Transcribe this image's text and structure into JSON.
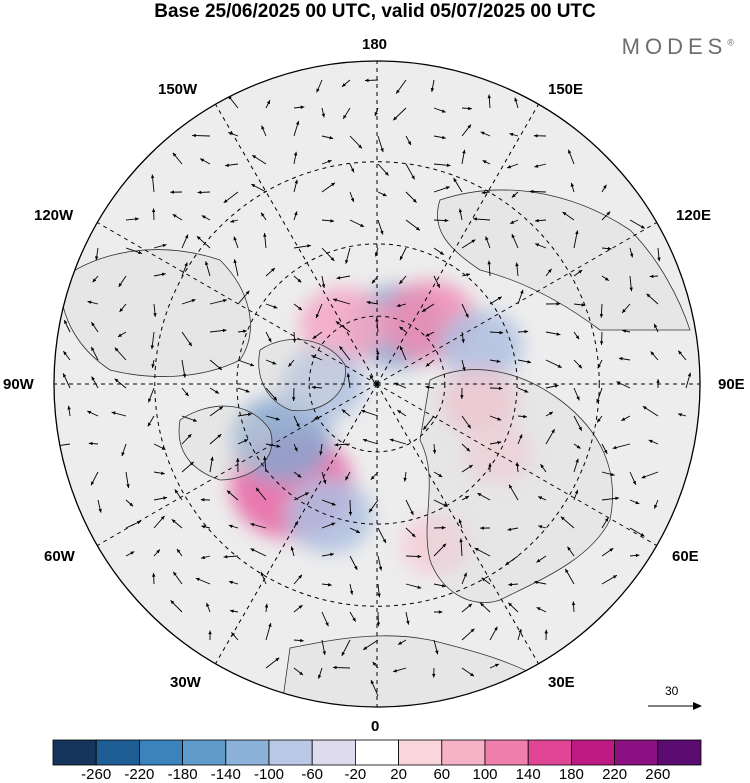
{
  "header": {
    "title": "Base 25/06/2025 00 UTC, valid 05/07/2025 00 UTC",
    "brand": "MODES",
    "brand_mark": "®"
  },
  "map": {
    "projection": "north polar stereographic",
    "longitude_labels": {
      "top": "180",
      "bottom": "0",
      "left": "90W",
      "right": "90E",
      "upper_left_1": "150W",
      "upper_left_2": "120W",
      "upper_right_1": "150E",
      "upper_right_2": "120E",
      "lower_left_1": "60W",
      "lower_left_2": "30W",
      "lower_right_1": "60E",
      "lower_right_2": "30E"
    },
    "reference_vector_label": "30",
    "anomaly_centers": [
      {
        "lon": -40,
        "lat": 52,
        "value": 220,
        "color": "#e864a4"
      },
      {
        "lon": -60,
        "lat": 58,
        "value": -150,
        "color": "#8aa7cf"
      },
      {
        "lon": -20,
        "lat": 50,
        "value": -110,
        "color": "#aebfe0"
      },
      {
        "lon": 160,
        "lat": 72,
        "value": -140,
        "color": "#8aa7cf"
      },
      {
        "lon": -150,
        "lat": 70,
        "value": 110,
        "color": "#f4a6c4"
      },
      {
        "lon": 140,
        "lat": 66,
        "value": 130,
        "color": "#f08cb4"
      },
      {
        "lon": 110,
        "lat": 58,
        "value": -100,
        "color": "#aebfe0"
      },
      {
        "lon": 80,
        "lat": 60,
        "value": 80,
        "color": "#f6bccd"
      },
      {
        "lon": -90,
        "lat": 74,
        "value": -100,
        "color": "#aebfe0"
      },
      {
        "lon": 60,
        "lat": 50,
        "value": 60,
        "color": "#f6cdd8"
      },
      {
        "lon": 20,
        "lat": 42,
        "value": 60,
        "color": "#f6cdd8"
      }
    ]
  },
  "colorbar": {
    "labels": [
      "-260",
      "-220",
      "-180",
      "-140",
      "-100",
      "-60",
      "-20",
      "20",
      "60",
      "100",
      "140",
      "180",
      "220",
      "260"
    ],
    "colors": [
      "#15355c",
      "#1f5e94",
      "#3a83bd",
      "#5f9ccc",
      "#8cb2da",
      "#b9c8e4",
      "#dedbee",
      "#ffffff",
      "#f9d6dc",
      "#f6b2c6",
      "#f07fae",
      "#e04596",
      "#be1a84",
      "#8b1183",
      "#5a0c70"
    ]
  }
}
